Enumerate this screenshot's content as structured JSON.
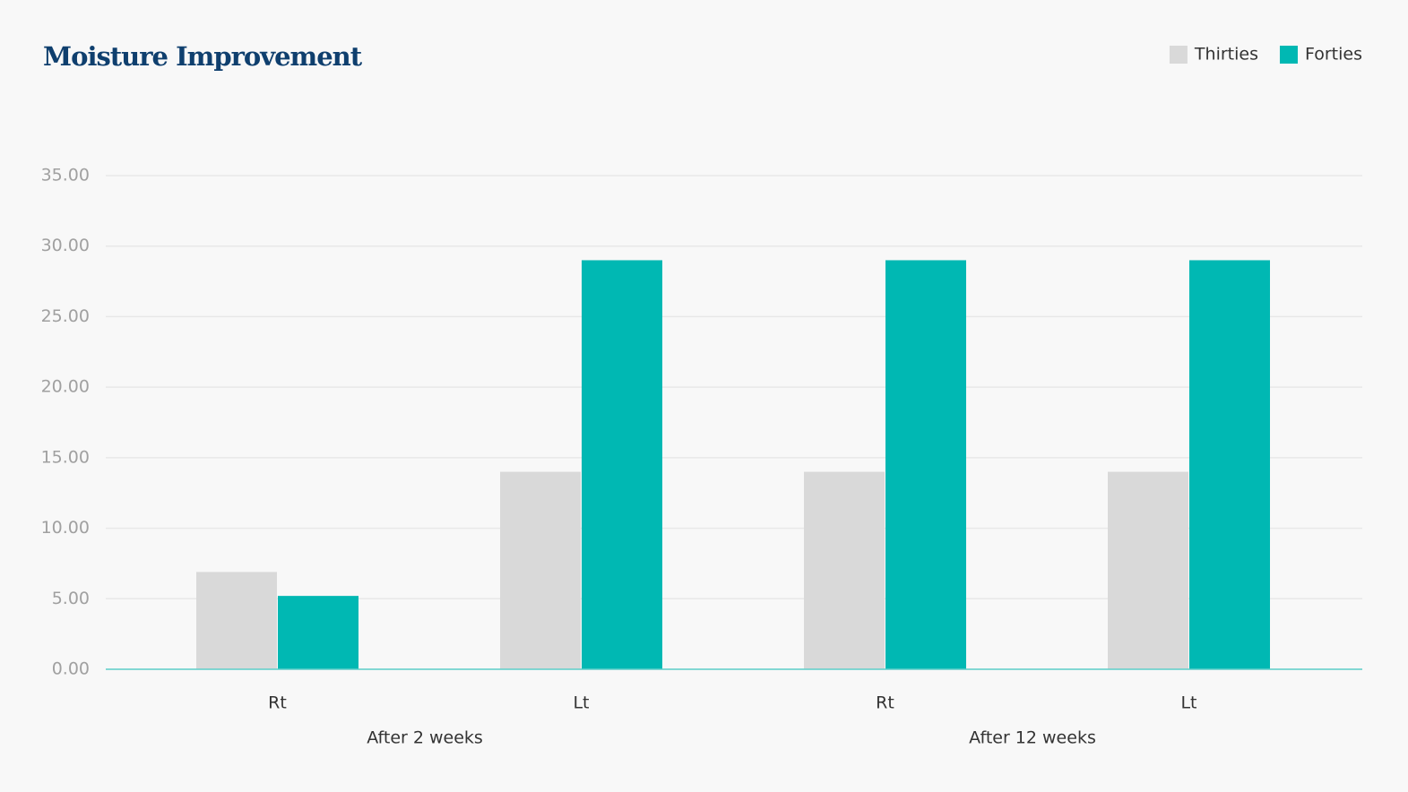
{
  "chart_data": {
    "type": "bar",
    "title": "Moisture Improvement",
    "categories": [
      "Rt",
      "Lt",
      "Rt",
      "Lt"
    ],
    "group_labels": [
      "After 2 weeks",
      "After 12 weeks"
    ],
    "series": [
      {
        "name": "Thirties",
        "color": "#d9d9d9",
        "values": [
          6.9,
          14,
          14,
          14
        ]
      },
      {
        "name": "Forties",
        "color": "#00b8b3",
        "values": [
          5.2,
          29,
          29,
          29
        ]
      }
    ],
    "ylim": [
      0,
      35
    ],
    "yticks": [
      {
        "value": 0,
        "label": "0.00"
      },
      {
        "value": 5,
        "label": "5.00"
      },
      {
        "value": 10,
        "label": "10.00"
      },
      {
        "value": 15,
        "label": "15.00"
      },
      {
        "value": 20,
        "label": "20.00"
      },
      {
        "value": 25,
        "label": "25.00"
      },
      {
        "value": 30,
        "label": "30.00"
      },
      {
        "value": 35,
        "label": "35.00"
      }
    ],
    "grid": true,
    "legend": "top-right"
  }
}
